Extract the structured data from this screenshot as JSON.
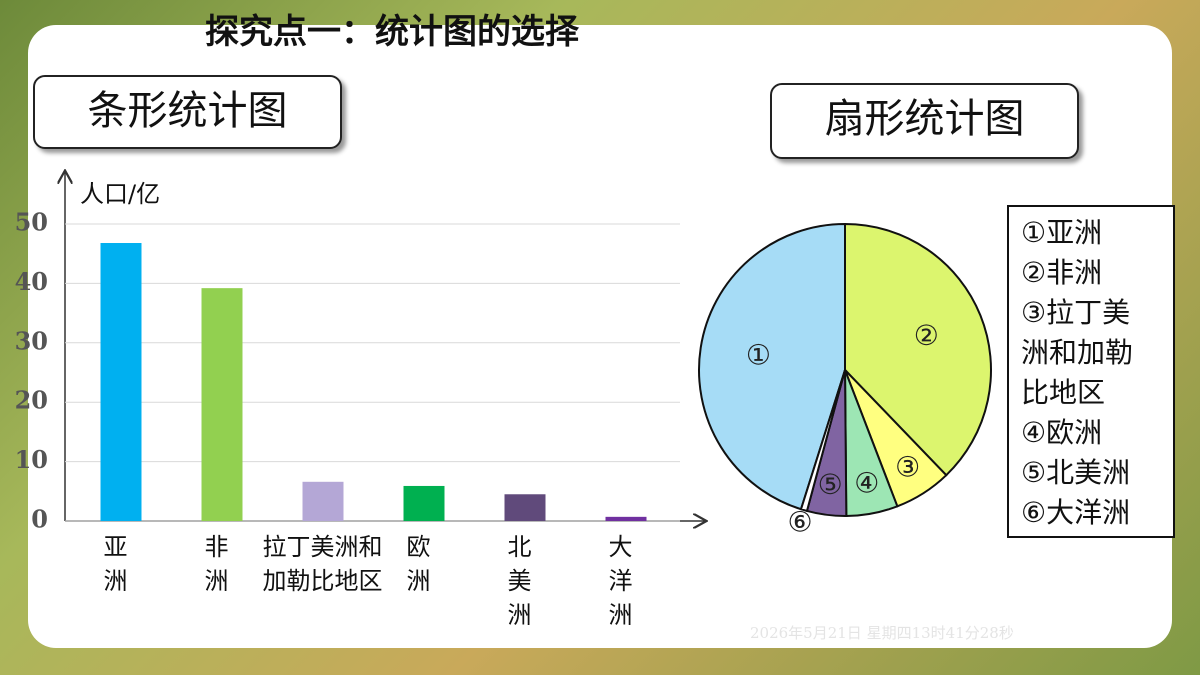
{
  "title": "探究点一：统计图的选择",
  "timestamp": "2026年5月21日 星期四13时41分28秒",
  "chart_data": [
    {
      "type": "bar",
      "heading": "条形统计图",
      "ylabel": "人口/亿",
      "categories": [
        "亚洲",
        "非洲",
        "拉丁美洲和加勒比地区",
        "欧洲",
        "北美洲",
        "大洋洲"
      ],
      "values": [
        46.8,
        39.2,
        6.6,
        5.9,
        4.5,
        0.7
      ],
      "colors": [
        "#00b0f0",
        "#92d050",
        "#b4a7d6",
        "#00b050",
        "#604a7b",
        "#7030a0"
      ],
      "ylim": [
        0,
        50
      ],
      "yticks": [
        0,
        10,
        20,
        30,
        40,
        50
      ],
      "grid": true
    },
    {
      "type": "pie",
      "heading": "扇形统计图",
      "categories": [
        "①亚洲",
        "②非洲",
        "③拉丁美洲和加勒比地区",
        "④欧洲",
        "⑤北美洲",
        "⑥大洋洲"
      ],
      "slice_labels": [
        "①",
        "②",
        "③",
        "④",
        "⑤",
        "⑥"
      ],
      "values": [
        46.8,
        39.2,
        6.6,
        5.9,
        4.5,
        0.7
      ],
      "colors": [
        "#a6dcf6",
        "#dcf56e",
        "#ffff80",
        "#9de6b4",
        "#8064a2",
        "#ffffff"
      ]
    }
  ]
}
